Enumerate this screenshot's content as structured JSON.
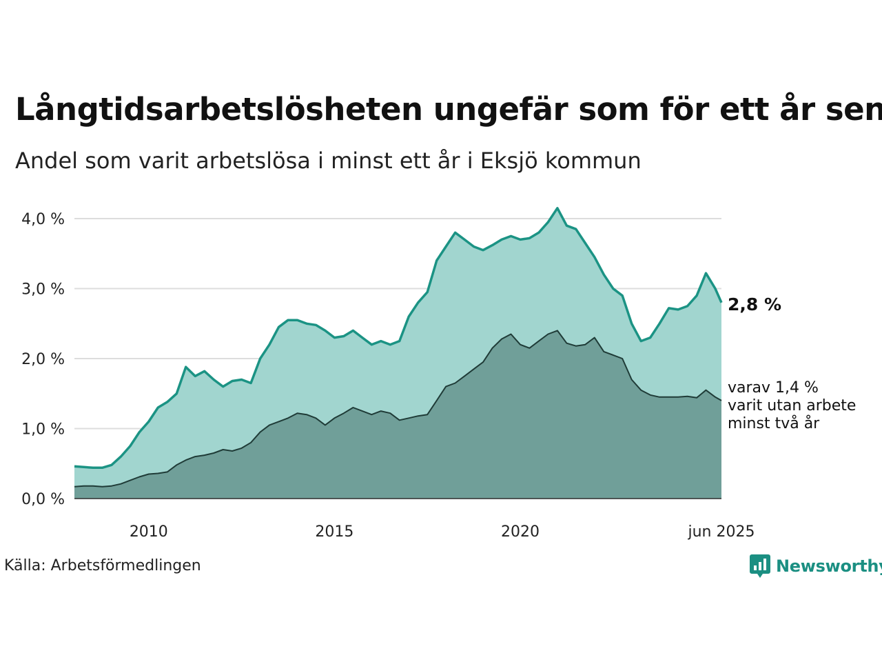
{
  "title": "Långtidsarbetslösheten ungefär som för ett år sen",
  "subtitle": "Andel som varit arbetslösa i minst ett år i Eksjö kommun",
  "source": "Källa: Arbetsförmedlingen",
  "brand": "Newsworthy",
  "colors": {
    "total_line": "#1b9384",
    "total_fill": "#a1d5cf",
    "sub_line": "#1f3b37",
    "sub_fill": "#709f99",
    "grid": "#dddddd"
  },
  "chart_data": {
    "type": "area",
    "x_range": [
      "2008-01",
      "2025-06"
    ],
    "ylim": [
      0,
      4.0
    ],
    "y_ticks": [
      {
        "value": 0,
        "label": "0,0 %"
      },
      {
        "value": 1,
        "label": "1,0 %"
      },
      {
        "value": 2,
        "label": "2,0 %"
      },
      {
        "value": 3,
        "label": "3,0 %"
      },
      {
        "value": 4,
        "label": "4,0 %"
      }
    ],
    "x_ticks": [
      {
        "value": "2010",
        "label": "2010"
      },
      {
        "value": "2015",
        "label": "2015"
      },
      {
        "value": "2020",
        "label": "2020"
      },
      {
        "value": "2025-06",
        "label": "jun 2025"
      }
    ],
    "annotation_total": "2,8 %",
    "annotation_sub": [
      "varav 1,4 %",
      "varit utan arbete",
      "minst två år"
    ],
    "series": [
      {
        "key": "total",
        "points": [
          [
            "2008-01",
            0.46
          ],
          [
            "2008-04",
            0.45
          ],
          [
            "2008-07",
            0.44
          ],
          [
            "2008-10",
            0.44
          ],
          [
            "2009-01",
            0.48
          ],
          [
            "2009-04",
            0.6
          ],
          [
            "2009-07",
            0.75
          ],
          [
            "2009-10",
            0.95
          ],
          [
            "2010-01",
            1.1
          ],
          [
            "2010-04",
            1.3
          ],
          [
            "2010-07",
            1.38
          ],
          [
            "2010-10",
            1.5
          ],
          [
            "2011-01",
            1.88
          ],
          [
            "2011-04",
            1.75
          ],
          [
            "2011-07",
            1.82
          ],
          [
            "2011-10",
            1.7
          ],
          [
            "2012-01",
            1.6
          ],
          [
            "2012-04",
            1.68
          ],
          [
            "2012-07",
            1.7
          ],
          [
            "2012-10",
            1.65
          ],
          [
            "2013-01",
            2.0
          ],
          [
            "2013-04",
            2.2
          ],
          [
            "2013-07",
            2.45
          ],
          [
            "2013-10",
            2.55
          ],
          [
            "2014-01",
            2.55
          ],
          [
            "2014-04",
            2.5
          ],
          [
            "2014-07",
            2.48
          ],
          [
            "2014-10",
            2.4
          ],
          [
            "2015-01",
            2.3
          ],
          [
            "2015-04",
            2.32
          ],
          [
            "2015-07",
            2.4
          ],
          [
            "2015-10",
            2.3
          ],
          [
            "2016-01",
            2.2
          ],
          [
            "2016-04",
            2.25
          ],
          [
            "2016-07",
            2.2
          ],
          [
            "2016-10",
            2.25
          ],
          [
            "2017-01",
            2.6
          ],
          [
            "2017-04",
            2.8
          ],
          [
            "2017-07",
            2.95
          ],
          [
            "2017-10",
            3.4
          ],
          [
            "2018-01",
            3.6
          ],
          [
            "2018-04",
            3.8
          ],
          [
            "2018-07",
            3.7
          ],
          [
            "2018-10",
            3.6
          ],
          [
            "2019-01",
            3.55
          ],
          [
            "2019-04",
            3.62
          ],
          [
            "2019-07",
            3.7
          ],
          [
            "2019-10",
            3.75
          ],
          [
            "2020-01",
            3.7
          ],
          [
            "2020-04",
            3.72
          ],
          [
            "2020-07",
            3.8
          ],
          [
            "2020-10",
            3.95
          ],
          [
            "2021-01",
            4.15
          ],
          [
            "2021-04",
            3.9
          ],
          [
            "2021-07",
            3.85
          ],
          [
            "2021-10",
            3.65
          ],
          [
            "2022-01",
            3.45
          ],
          [
            "2022-04",
            3.2
          ],
          [
            "2022-07",
            3.0
          ],
          [
            "2022-10",
            2.9
          ],
          [
            "2023-01",
            2.5
          ],
          [
            "2023-04",
            2.25
          ],
          [
            "2023-07",
            2.3
          ],
          [
            "2023-10",
            2.5
          ],
          [
            "2024-01",
            2.72
          ],
          [
            "2024-04",
            2.7
          ],
          [
            "2024-07",
            2.75
          ],
          [
            "2024-10",
            2.9
          ],
          [
            "2025-01",
            3.22
          ],
          [
            "2025-04",
            3.0
          ],
          [
            "2025-06",
            2.8
          ]
        ]
      },
      {
        "key": "sub",
        "points": [
          [
            "2008-01",
            0.17
          ],
          [
            "2008-04",
            0.18
          ],
          [
            "2008-07",
            0.18
          ],
          [
            "2008-10",
            0.17
          ],
          [
            "2009-01",
            0.18
          ],
          [
            "2009-04",
            0.21
          ],
          [
            "2009-07",
            0.26
          ],
          [
            "2009-10",
            0.31
          ],
          [
            "2010-01",
            0.35
          ],
          [
            "2010-04",
            0.36
          ],
          [
            "2010-07",
            0.38
          ],
          [
            "2010-10",
            0.48
          ],
          [
            "2011-01",
            0.55
          ],
          [
            "2011-04",
            0.6
          ],
          [
            "2011-07",
            0.62
          ],
          [
            "2011-10",
            0.65
          ],
          [
            "2012-01",
            0.7
          ],
          [
            "2012-04",
            0.68
          ],
          [
            "2012-07",
            0.72
          ],
          [
            "2012-10",
            0.8
          ],
          [
            "2013-01",
            0.95
          ],
          [
            "2013-04",
            1.05
          ],
          [
            "2013-07",
            1.1
          ],
          [
            "2013-10",
            1.15
          ],
          [
            "2014-01",
            1.22
          ],
          [
            "2014-04",
            1.2
          ],
          [
            "2014-07",
            1.15
          ],
          [
            "2014-10",
            1.05
          ],
          [
            "2015-01",
            1.15
          ],
          [
            "2015-04",
            1.22
          ],
          [
            "2015-07",
            1.3
          ],
          [
            "2015-10",
            1.25
          ],
          [
            "2016-01",
            1.2
          ],
          [
            "2016-04",
            1.25
          ],
          [
            "2016-07",
            1.22
          ],
          [
            "2016-10",
            1.12
          ],
          [
            "2017-01",
            1.15
          ],
          [
            "2017-04",
            1.18
          ],
          [
            "2017-07",
            1.2
          ],
          [
            "2017-10",
            1.4
          ],
          [
            "2018-01",
            1.6
          ],
          [
            "2018-04",
            1.65
          ],
          [
            "2018-07",
            1.75
          ],
          [
            "2018-10",
            1.85
          ],
          [
            "2019-01",
            1.95
          ],
          [
            "2019-04",
            2.15
          ],
          [
            "2019-07",
            2.28
          ],
          [
            "2019-10",
            2.35
          ],
          [
            "2020-01",
            2.2
          ],
          [
            "2020-04",
            2.15
          ],
          [
            "2020-07",
            2.25
          ],
          [
            "2020-10",
            2.35
          ],
          [
            "2021-01",
            2.4
          ],
          [
            "2021-04",
            2.22
          ],
          [
            "2021-07",
            2.18
          ],
          [
            "2021-10",
            2.2
          ],
          [
            "2022-01",
            2.3
          ],
          [
            "2022-04",
            2.1
          ],
          [
            "2022-07",
            2.05
          ],
          [
            "2022-10",
            2.0
          ],
          [
            "2023-01",
            1.7
          ],
          [
            "2023-04",
            1.55
          ],
          [
            "2023-07",
            1.48
          ],
          [
            "2023-10",
            1.45
          ],
          [
            "2024-01",
            1.45
          ],
          [
            "2024-04",
            1.45
          ],
          [
            "2024-07",
            1.46
          ],
          [
            "2024-10",
            1.44
          ],
          [
            "2025-01",
            1.55
          ],
          [
            "2025-04",
            1.45
          ],
          [
            "2025-06",
            1.4
          ]
        ]
      }
    ]
  }
}
